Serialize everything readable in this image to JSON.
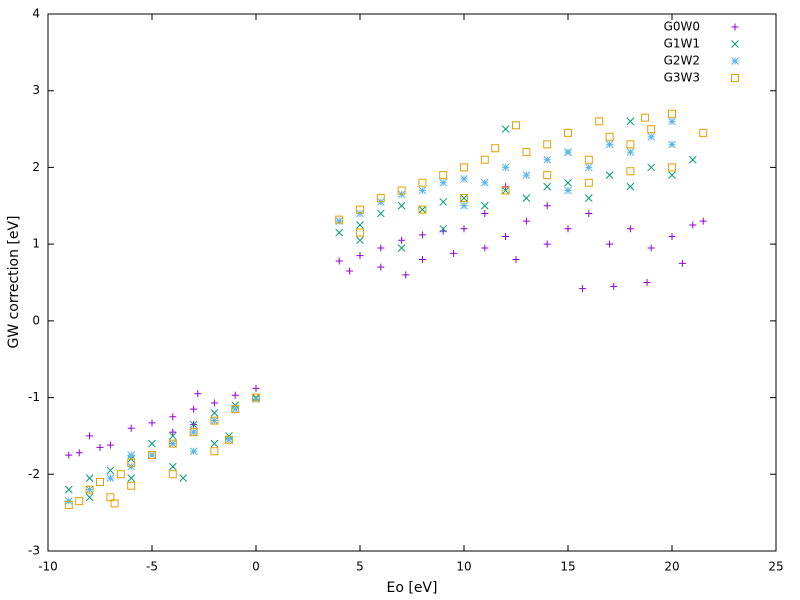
{
  "chart_data": {
    "type": "scatter",
    "xlabel": "Eo [eV]",
    "ylabel": "GW correction [eV]",
    "xlim": [
      -10,
      25
    ],
    "xticks": [
      -10,
      -5,
      0,
      5,
      10,
      15,
      20,
      25
    ],
    "ylim": [
      -3,
      4
    ],
    "yticks": [
      -3,
      -2,
      -1,
      0,
      1,
      2,
      3,
      4
    ],
    "grid": false,
    "legend": "top-right",
    "series": [
      {
        "name": "G0W0",
        "color": "#9400d3",
        "marker": "plus",
        "x": [
          -9,
          -8.5,
          -8,
          -7.5,
          -7,
          -6,
          -5,
          -4,
          -3,
          -2,
          -1,
          0,
          -4,
          -3,
          -2.8,
          4,
          5,
          6,
          7,
          8,
          9,
          10,
          4.5,
          6,
          7.2,
          8,
          9.5,
          11,
          12,
          12.5,
          13,
          14,
          15,
          15.7,
          16,
          17,
          17.2,
          18,
          18.8,
          19,
          20,
          21,
          21.5,
          11,
          14,
          20.5,
          12
        ],
        "values": [
          -1.75,
          -1.72,
          -1.5,
          -1.65,
          -1.62,
          -1.4,
          -1.33,
          -1.25,
          -1.15,
          -1.07,
          -0.97,
          -0.88,
          -1.45,
          -1.35,
          -0.95,
          0.78,
          0.85,
          0.95,
          1.05,
          1.12,
          1.17,
          1.2,
          0.65,
          0.7,
          0.6,
          0.8,
          0.88,
          0.95,
          1.1,
          0.8,
          1.3,
          1.0,
          1.2,
          0.42,
          1.4,
          1.0,
          0.45,
          1.2,
          0.5,
          0.95,
          1.1,
          1.25,
          1.3,
          1.4,
          1.5,
          0.75,
          1.75
        ]
      },
      {
        "name": "G1W1",
        "color": "#009e73",
        "marker": "cross",
        "x": [
          -9,
          -8,
          -7,
          -6,
          -5,
          -4,
          -3,
          -2,
          -1,
          0,
          -8,
          -6,
          -4,
          -2,
          -1.3,
          -3.5,
          4,
          5,
          6,
          7,
          8,
          9,
          10,
          11,
          12,
          13,
          14,
          15,
          16,
          17,
          18,
          19,
          20,
          21,
          12,
          18,
          5,
          7,
          9,
          15
        ],
        "values": [
          -2.2,
          -2.05,
          -1.95,
          -1.8,
          -1.6,
          -1.5,
          -1.35,
          -1.2,
          -1.1,
          -1.0,
          -2.3,
          -2.05,
          -1.9,
          -1.6,
          -1.5,
          -2.05,
          1.15,
          1.25,
          1.4,
          1.5,
          1.45,
          1.55,
          1.6,
          1.5,
          1.7,
          1.6,
          1.75,
          1.8,
          1.6,
          1.9,
          1.75,
          2.0,
          1.9,
          2.1,
          2.5,
          2.6,
          1.05,
          0.95,
          1.2,
          2.2
        ]
      },
      {
        "name": "G2W2",
        "color": "#56b4e9",
        "marker": "star",
        "x": [
          -9,
          -8,
          -7,
          -6,
          -5,
          -4,
          -3,
          -2,
          -1,
          0,
          -6,
          -3,
          -1.3,
          4,
          5,
          6,
          7,
          8,
          9,
          10,
          11,
          12,
          13,
          14,
          15,
          16,
          17,
          18,
          19,
          20,
          20,
          10,
          15
        ],
        "values": [
          -2.35,
          -2.2,
          -2.05,
          -1.9,
          -1.75,
          -1.6,
          -1.45,
          -1.3,
          -1.15,
          -1.02,
          -1.75,
          -1.7,
          -1.55,
          1.3,
          1.4,
          1.55,
          1.65,
          1.7,
          1.8,
          1.85,
          1.8,
          2.0,
          1.9,
          2.1,
          2.2,
          2.0,
          2.3,
          2.2,
          2.4,
          2.3,
          2.6,
          1.5,
          1.7
        ]
      },
      {
        "name": "G3W3",
        "color": "#e69f00",
        "marker": "square",
        "x": [
          -9,
          -8.5,
          -8,
          -7,
          -6.5,
          -6,
          -5,
          -4,
          -3,
          -2,
          -1,
          0,
          -6,
          -4,
          -2,
          -1.3,
          -6.8,
          -7.5,
          4,
          5,
          6,
          7,
          8,
          9,
          10,
          11,
          11.5,
          12.5,
          13,
          14,
          15,
          16,
          16.5,
          17,
          18,
          18.7,
          19,
          20,
          21.5,
          5,
          8,
          10,
          12,
          14,
          16,
          18,
          20
        ],
        "values": [
          -2.4,
          -2.35,
          -2.2,
          -2.3,
          -2.0,
          -1.85,
          -1.75,
          -1.6,
          -1.45,
          -1.3,
          -1.15,
          -1.0,
          -2.15,
          -2.0,
          -1.7,
          -1.55,
          -2.38,
          -2.1,
          1.32,
          1.45,
          1.6,
          1.7,
          1.8,
          1.9,
          2.0,
          2.1,
          2.25,
          2.55,
          2.2,
          2.3,
          2.45,
          2.1,
          2.6,
          2.4,
          2.3,
          2.65,
          2.5,
          2.7,
          2.45,
          1.15,
          1.45,
          1.6,
          1.7,
          1.9,
          1.8,
          1.95,
          2.0
        ]
      }
    ]
  }
}
